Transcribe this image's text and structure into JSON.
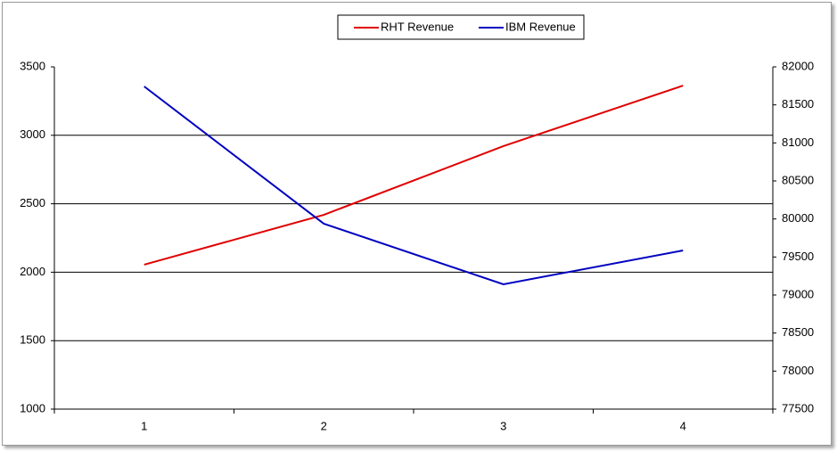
{
  "chart_data": {
    "type": "line",
    "categories": [
      "1",
      "2",
      "3",
      "4"
    ],
    "series": [
      {
        "name": "RHT Revenue",
        "color": "#e00000",
        "values": [
          2055,
          2419,
          2921,
          3363
        ]
      },
      {
        "name": "IBM Revenue",
        "color": "#0000c0",
        "axis": "y2",
        "values": [
          81742,
          79938,
          79141,
          79586
        ]
      }
    ],
    "ylim": [
      1000,
      3500
    ],
    "yticks": [
      1000,
      1500,
      2000,
      2500,
      3000,
      3500
    ],
    "y2lim": [
      77500,
      82000
    ],
    "y2ticks": [
      77500,
      78000,
      78500,
      79000,
      79500,
      80000,
      80500,
      81000,
      81500,
      82000
    ],
    "grid": true,
    "legend": "top"
  }
}
